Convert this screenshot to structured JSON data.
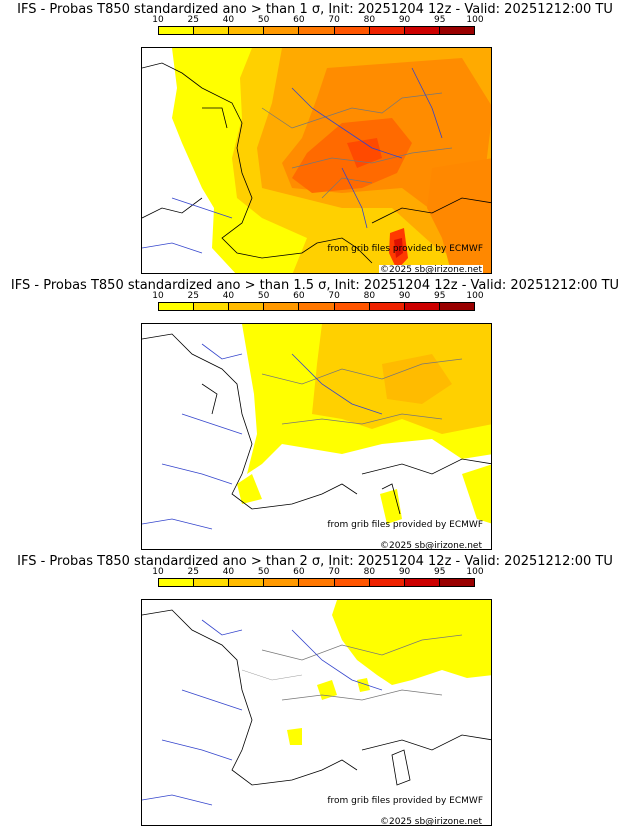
{
  "colorbar": {
    "ticks": [
      "10",
      "25",
      "40",
      "50",
      "60",
      "70",
      "80",
      "90",
      "95",
      "100"
    ],
    "colors": [
      "#ffff00",
      "#ffdd00",
      "#ffbb00",
      "#ff9900",
      "#ff7700",
      "#ff5500",
      "#ee2200",
      "#cc0000",
      "#990000"
    ]
  },
  "panels": [
    {
      "title": "IFS - Probas T850  standardized ano > than 1 σ, Init: 20251204 12z - Valid: 20251212:00 TU",
      "credit_source": "from grib files provided by ECMWF",
      "credit_copyright": "©2025 sb@irizone.net"
    },
    {
      "title": "IFS - Probas T850  standardized ano > than 1.5 σ, Init: 20251204 12z - Valid: 20251212:00 TU",
      "credit_source": "from grib files provided by ECMWF",
      "credit_copyright": "©2025 sb@irizone.net"
    },
    {
      "title": "IFS - Probas T850  standardized ano > than 2 σ, Init: 20251204 12z - Valid: 20251212:00 TU",
      "credit_source": "from grib files provided by ECMWF",
      "credit_copyright": "©2025 sb@irizone.net"
    }
  ]
}
